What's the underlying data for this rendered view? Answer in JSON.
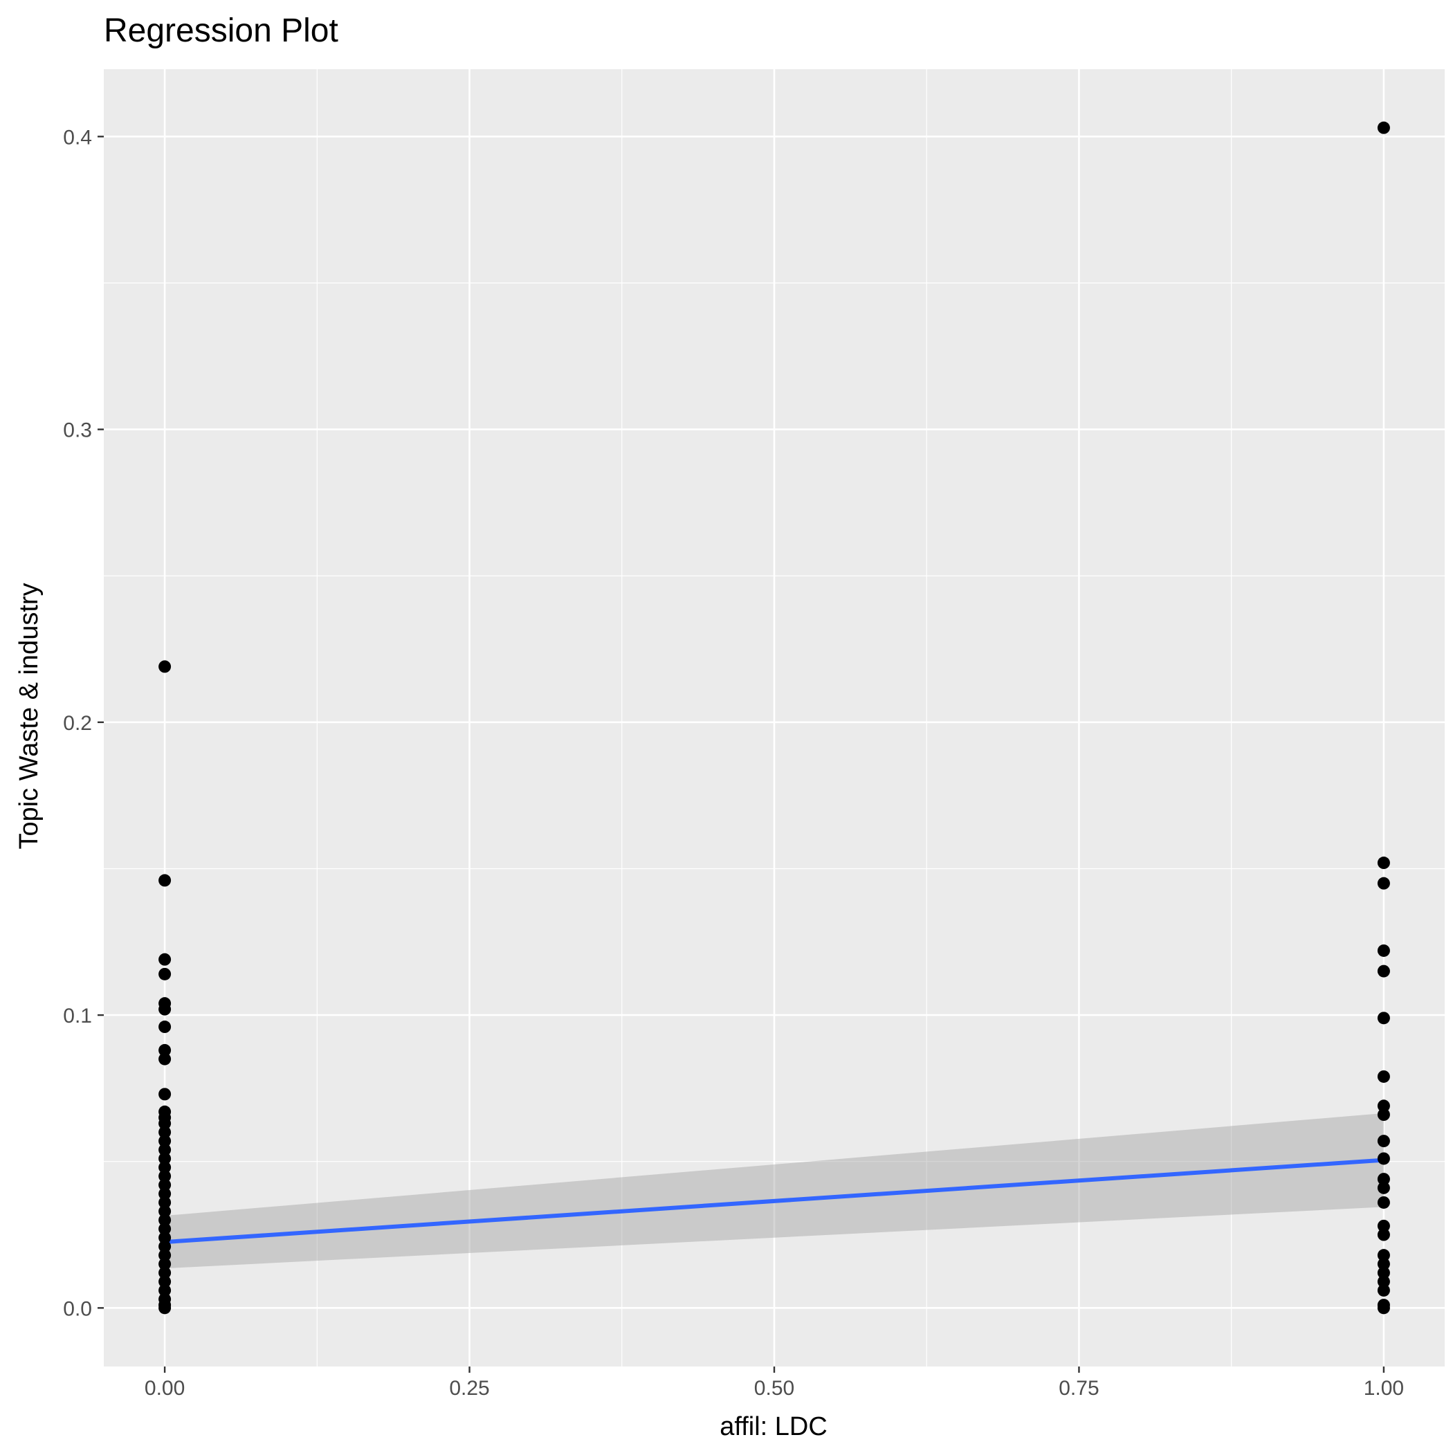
{
  "chart_data": {
    "type": "scatter",
    "title": "Regression Plot",
    "xlabel": "affil: LDC",
    "ylabel": "Topic Waste & industry",
    "xlim": [
      -0.05,
      1.05
    ],
    "ylim": [
      -0.02,
      0.423
    ],
    "x_ticks": [
      0,
      0.25,
      0.5,
      0.75,
      1
    ],
    "x_tick_labels": [
      "0.00",
      "0.25",
      "0.50",
      "0.75",
      "1.00"
    ],
    "y_ticks": [
      0,
      0.1,
      0.2,
      0.3,
      0.4
    ],
    "y_tick_labels": [
      "0.0",
      "0.1",
      "0.2",
      "0.3",
      "0.4"
    ],
    "grid": true,
    "panel_background": "#ebebeb",
    "grid_color": "#ffffff",
    "point_color": "#000000",
    "line_color": "#3366ff",
    "ribbon_color": "#999999",
    "points": [
      [
        0,
        0.219
      ],
      [
        0,
        0.146
      ],
      [
        0,
        0.119
      ],
      [
        0,
        0.114
      ],
      [
        0,
        0.104
      ],
      [
        0,
        0.102
      ],
      [
        0,
        0.096
      ],
      [
        0,
        0.088
      ],
      [
        0,
        0.085
      ],
      [
        0,
        0.073
      ],
      [
        0,
        0.067
      ],
      [
        0,
        0.065
      ],
      [
        0,
        0.063
      ],
      [
        0,
        0.06
      ],
      [
        0,
        0.057
      ],
      [
        0,
        0.054
      ],
      [
        0,
        0.051
      ],
      [
        0,
        0.048
      ],
      [
        0,
        0.045
      ],
      [
        0,
        0.042
      ],
      [
        0,
        0.039
      ],
      [
        0,
        0.036
      ],
      [
        0,
        0.033
      ],
      [
        0,
        0.03
      ],
      [
        0,
        0.027
      ],
      [
        0,
        0.024
      ],
      [
        0,
        0.021
      ],
      [
        0,
        0.018
      ],
      [
        0,
        0.015
      ],
      [
        0,
        0.012
      ],
      [
        0,
        0.009
      ],
      [
        0,
        0.006
      ],
      [
        0,
        0.003
      ],
      [
        0,
        0.001
      ],
      [
        0,
        0.0
      ],
      [
        1,
        0.403
      ],
      [
        1,
        0.152
      ],
      [
        1,
        0.145
      ],
      [
        1,
        0.122
      ],
      [
        1,
        0.115
      ],
      [
        1,
        0.099
      ],
      [
        1,
        0.079
      ],
      [
        1,
        0.069
      ],
      [
        1,
        0.066
      ],
      [
        1,
        0.057
      ],
      [
        1,
        0.051
      ],
      [
        1,
        0.044
      ],
      [
        1,
        0.041
      ],
      [
        1,
        0.036
      ],
      [
        1,
        0.028
      ],
      [
        1,
        0.025
      ],
      [
        1,
        0.018
      ],
      [
        1,
        0.015
      ],
      [
        1,
        0.012
      ],
      [
        1,
        0.009
      ],
      [
        1,
        0.006
      ],
      [
        1,
        0.001
      ],
      [
        1,
        0.0
      ]
    ],
    "regression_line": {
      "x": [
        0,
        1
      ],
      "y": [
        0.0225,
        0.0505
      ]
    },
    "confidence_band": {
      "x": [
        0,
        1
      ],
      "lower": [
        0.0135,
        0.0345
      ],
      "upper": [
        0.0315,
        0.0665
      ]
    }
  }
}
